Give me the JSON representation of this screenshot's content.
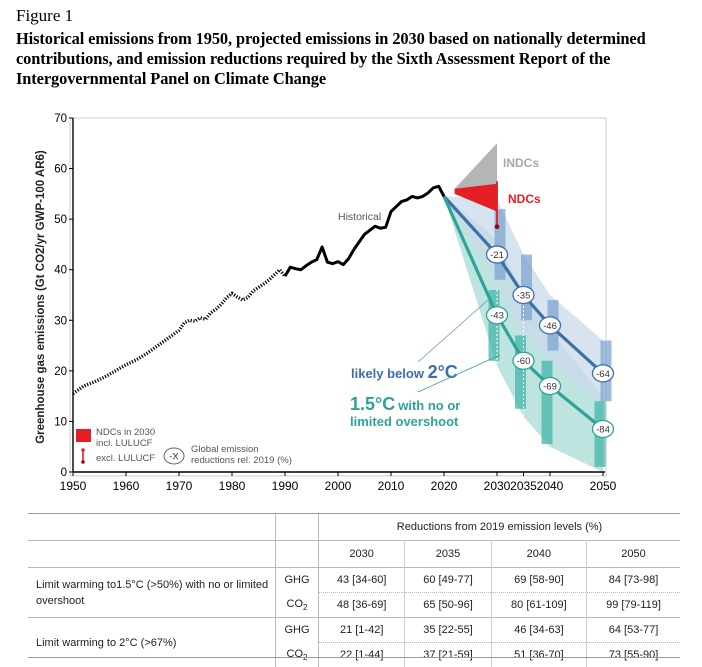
{
  "figure": {
    "label": "Figure 1",
    "title": "Historical emissions from 1950, projected emissions in 2030 based on nationally determined contributions, and emission reductions required by the Sixth Assessment Report of the Intergovernmental Panel on Climate Change"
  },
  "chart_data": {
    "type": "line",
    "ylabel": "Greenhouse gas emissions (Gt CO2/yr GWP-100 AR6)",
    "xlim": [
      1950,
      2050
    ],
    "ylim": [
      0,
      70
    ],
    "x_ticks": [
      "1950",
      "1960",
      "1970",
      "1980",
      "1990",
      "2000",
      "2010",
      "2020",
      "2030",
      "2035",
      "2040",
      "2050"
    ],
    "x_tick_values": [
      1950,
      1960,
      1970,
      1980,
      1990,
      2000,
      2010,
      2020,
      2030,
      2035,
      2040,
      2050
    ],
    "y_ticks": [
      0,
      10,
      20,
      30,
      40,
      50,
      60,
      70
    ],
    "historical": {
      "label": "Historical",
      "x": [
        1950,
        1952,
        1954,
        1956,
        1958,
        1960,
        1962,
        1964,
        1966,
        1968,
        1970,
        1971,
        1972,
        1973,
        1974,
        1975,
        1976,
        1977,
        1978,
        1979,
        1980,
        1981,
        1982,
        1983,
        1984,
        1985,
        1986,
        1987,
        1988,
        1989,
        1990,
        1991,
        1992,
        1993,
        1994,
        1995,
        1996,
        1997,
        1998,
        1999,
        2000,
        2001,
        2002,
        2003,
        2004,
        2005,
        2006,
        2007,
        2008,
        2009,
        2010,
        2011,
        2012,
        2013,
        2014,
        2015,
        2016,
        2017,
        2018,
        2019,
        2020
      ],
      "y": [
        15.5,
        17,
        17.8,
        18.8,
        20,
        21.2,
        22.2,
        23.5,
        25,
        26.5,
        28,
        29.5,
        30,
        29.8,
        30.5,
        30.2,
        31.5,
        32.2,
        33.2,
        34.5,
        35.3,
        34.6,
        34.0,
        34.5,
        35.8,
        36.5,
        37.2,
        38,
        39,
        40,
        38.7,
        40.5,
        40.2,
        40,
        40.8,
        41.5,
        42,
        44.5,
        41.5,
        41.2,
        41.6,
        41.0,
        42.2,
        44,
        45.5,
        47,
        47.8,
        48.6,
        48.2,
        48.4,
        51.5,
        52.5,
        53.5,
        53.8,
        54.5,
        54.2,
        54.5,
        55.2,
        56.2,
        56.5,
        54.5
      ]
    },
    "pathways": [
      {
        "name": "likely below 2°C",
        "color": "#3d6fa8",
        "x": [
          2020,
          2030,
          2035,
          2040,
          2050
        ],
        "median": [
          54.5,
          43,
          35,
          29,
          19.5
        ],
        "band_low": [
          54.5,
          38,
          27,
          22,
          13
        ],
        "band_high": [
          54.5,
          54,
          43,
          35,
          26
        ],
        "bar_low": [
          null,
          38,
          30,
          24,
          14
        ],
        "bar_high": [
          null,
          52,
          43,
          34,
          26
        ],
        "labels": [
          "-21",
          "-35",
          "-46",
          "-64"
        ]
      },
      {
        "name": "1.5°C with no or limited overshoot",
        "color": "#2fa39a",
        "x": [
          2020,
          2030,
          2035,
          2040,
          2050
        ],
        "median": [
          54.5,
          31,
          22,
          17,
          8.5
        ],
        "band_low": [
          54.5,
          21,
          11,
          5,
          0
        ],
        "band_high": [
          54.5,
          46,
          35,
          28,
          15
        ],
        "bar_low": [
          null,
          22,
          12.5,
          5.5,
          1
        ],
        "bar_high": [
          null,
          36,
          27,
          22,
          14
        ],
        "labels": [
          "-43",
          "-60",
          "-69",
          "-84"
        ]
      }
    ],
    "indcs": {
      "label": "INDCs",
      "color": "#b5b5b5",
      "x": [
        2022,
        2030
      ],
      "low": [
        55,
        54
      ],
      "high": [
        56,
        65
      ]
    },
    "ndcs": {
      "label": "NDCs",
      "color": "#e31e24",
      "x": [
        2022,
        2030
      ],
      "low": [
        55,
        51.5
      ],
      "high": [
        56,
        57
      ]
    },
    "ndc_range": {
      "x": 2030,
      "low": 48.5,
      "high": 57.5
    },
    "pathway_labels": {
      "two": {
        "prefix": "likely below ",
        "value": "2°C"
      },
      "onefive": {
        "value": "1.5°C",
        "suffix_line1": "with no or",
        "line2": "limited overshoot"
      }
    },
    "legend": {
      "ndc_box_label_1": "NDCs in 2030",
      "ndc_box_label_2": "incl. LULUCF",
      "ndc_bar_label": "excl. LULUCF",
      "reduction_symbol": "-X",
      "reduction_label_1": "Global emission",
      "reduction_label_2": "reductions rel. 2019 (%)"
    }
  },
  "table": {
    "header": "Reductions from 2019 emission levels (%)",
    "years": [
      "2030",
      "2035",
      "2040",
      "2050"
    ],
    "rows": [
      {
        "label": "Limit warming to1.5°C (>50%) with no or limited overshoot",
        "gases": [
          {
            "gas": "GHG",
            "values": [
              "43 [34-60]",
              "60 [49-77]",
              "69 [58-90]",
              "84 [73-98]"
            ]
          },
          {
            "gas": "CO2",
            "values": [
              "48 [36-69]",
              "65 [50-96]",
              "80 [61-109]",
              "99 [79-119]"
            ]
          }
        ]
      },
      {
        "label": "Limit warming to 2°C (>67%)",
        "gases": [
          {
            "gas": "GHG",
            "values": [
              "21 [1-42]",
              "35 [22-55]",
              "46 [34-63]",
              "64 [53-77]"
            ]
          },
          {
            "gas": "CO2",
            "values": [
              "22 [1-44]",
              "37 [21-59]",
              "51 [36-70]",
              "73 [55-90]"
            ]
          }
        ]
      }
    ]
  }
}
